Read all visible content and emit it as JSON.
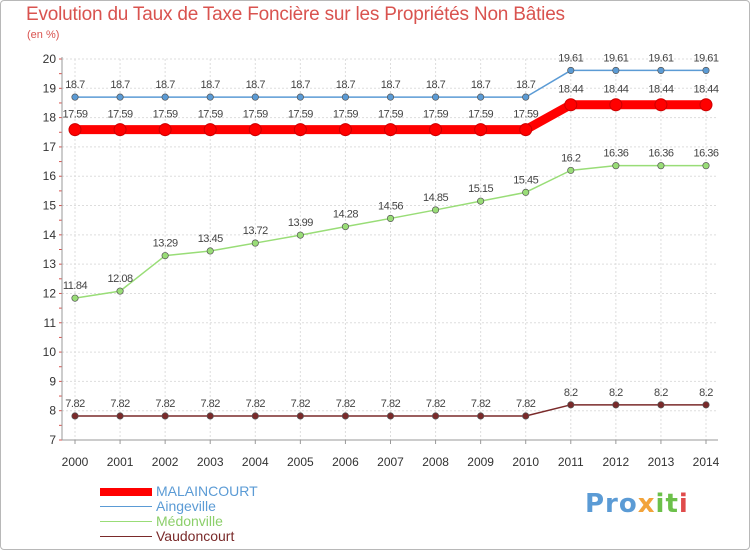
{
  "title": "Evolution du Taux de Taxe Foncière sur les Propriétés Non Bâties",
  "subtitle": "(en %)",
  "logo": {
    "text": "Proxiti",
    "parts": [
      "Pro",
      "x",
      "it",
      "i"
    ]
  },
  "chart_data": {
    "type": "line",
    "x": [
      2000,
      2001,
      2002,
      2003,
      2004,
      2005,
      2006,
      2007,
      2008,
      2009,
      2010,
      2011,
      2012,
      2013,
      2014
    ],
    "ylim": [
      7,
      20
    ],
    "yticks": [
      7,
      8,
      9,
      10,
      11,
      12,
      13,
      14,
      15,
      16,
      17,
      18,
      19,
      20
    ],
    "xlabel": "",
    "ylabel": "",
    "grid": true,
    "legend_placement": "bottom-left",
    "series": [
      {
        "name": "MALAINCOURT",
        "color": "#ff0000",
        "values": [
          17.59,
          17.59,
          17.59,
          17.59,
          17.59,
          17.59,
          17.59,
          17.59,
          17.59,
          17.59,
          17.59,
          18.44,
          18.44,
          18.44,
          18.44
        ],
        "labels": [
          "17.59",
          "17.59",
          "17.59",
          "17.59",
          "17.59",
          "17.59",
          "17.59",
          "17.59",
          "17.59",
          "17.59",
          "17.59",
          "18.44",
          "18.44",
          "18.44",
          "18.44"
        ]
      },
      {
        "name": "Aingeville",
        "color": "#5b9bd5",
        "values": [
          18.7,
          18.7,
          18.7,
          18.7,
          18.7,
          18.7,
          18.7,
          18.7,
          18.7,
          18.7,
          18.7,
          19.61,
          19.61,
          19.61,
          19.61
        ],
        "labels": [
          "18.7",
          "18.7",
          "18.7",
          "18.7",
          "18.7",
          "18.7",
          "18.7",
          "18.7",
          "18.7",
          "18.7",
          "18.7",
          "19.61",
          "19.61",
          "19.61",
          "19.61"
        ]
      },
      {
        "name": "Médonville",
        "color": "#99dd77",
        "values": [
          11.84,
          12.08,
          13.29,
          13.45,
          13.72,
          13.99,
          14.28,
          14.56,
          14.85,
          15.15,
          15.45,
          16.2,
          16.36,
          16.36,
          16.36
        ],
        "labels": [
          "11.84",
          "12.08",
          "13.29",
          "13.45",
          "13.72",
          "13.99",
          "14.28",
          "14.56",
          "14.85",
          "15.15",
          "15.45",
          "16.2",
          "16.36",
          "16.36",
          "16.36"
        ]
      },
      {
        "name": "Vaudoncourt",
        "color": "#7a2a2a",
        "values": [
          7.82,
          7.82,
          7.82,
          7.82,
          7.82,
          7.82,
          7.82,
          7.82,
          7.82,
          7.82,
          7.82,
          8.2,
          8.2,
          8.2,
          8.2
        ],
        "labels": [
          "7.82",
          "7.82",
          "7.82",
          "7.82",
          "7.82",
          "7.82",
          "7.82",
          "7.82",
          "7.82",
          "7.82",
          "7.82",
          "8.2",
          "8.2",
          "8.2",
          "8.2"
        ]
      }
    ]
  }
}
